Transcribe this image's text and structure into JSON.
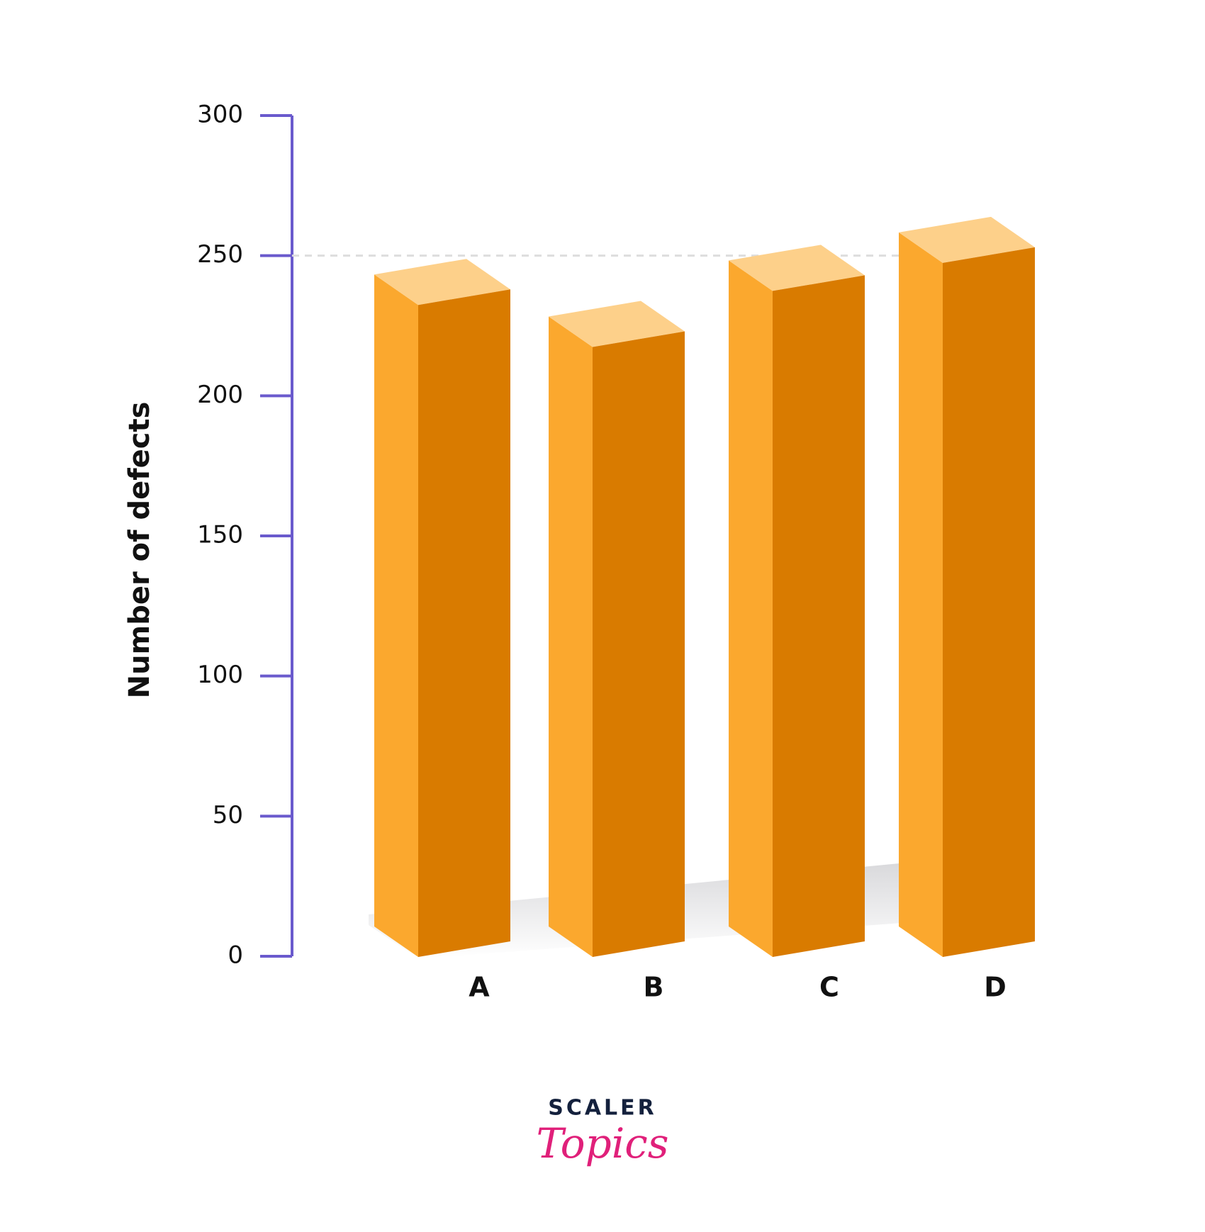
{
  "chart_data": {
    "type": "bar3d",
    "y_label": "Number of defects",
    "categories": [
      "A",
      "B",
      "C",
      "D"
    ],
    "values": [
      240,
      225,
      245,
      255
    ],
    "colors": {
      "front": "#d97b00",
      "side": "#fba82e",
      "top": "#fdd08a"
    },
    "axis_color": "#6a5acd",
    "ylim": [
      0,
      300
    ],
    "yticks": [
      0,
      50,
      100,
      150,
      200,
      250,
      300
    ],
    "reference_line": 250,
    "logo": [
      "SCALER",
      "Topics"
    ]
  }
}
